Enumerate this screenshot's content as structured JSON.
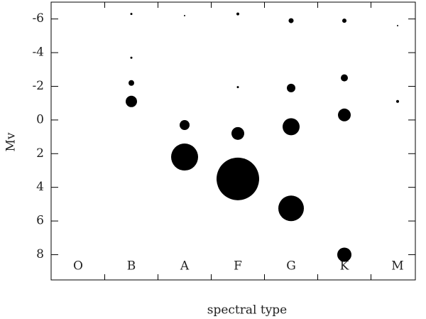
{
  "chart_data": {
    "type": "scatter",
    "x_label": "spectral type",
    "y_label": "Mv",
    "categories": [
      "O",
      "B",
      "A",
      "F",
      "G",
      "K",
      "M"
    ],
    "ylim": [
      9.5,
      -7
    ],
    "yticks": [
      -6,
      -4,
      -2,
      0,
      2,
      4,
      6,
      8
    ],
    "series": [
      {
        "color": "#000000",
        "x": [
          "B",
          "B",
          "B",
          "B",
          "A",
          "A",
          "A",
          "F",
          "F",
          "F",
          "F",
          "G",
          "G",
          "G",
          "G",
          "K",
          "K",
          "K",
          "K",
          "M",
          "M"
        ],
        "values": [
          -6.3,
          -3.7,
          -2.2,
          -1.1,
          -6.2,
          0.3,
          2.2,
          -6.3,
          -1.95,
          0.8,
          3.5,
          -5.9,
          -1.9,
          0.4,
          5.25,
          -5.9,
          -2.5,
          -0.3,
          8.0,
          -5.6,
          -1.1
        ],
        "sizes": [
          1.5,
          1.5,
          4,
          8,
          1,
          7,
          19,
          2,
          1.5,
          9,
          30,
          3.5,
          6,
          12,
          18,
          3,
          5,
          9,
          10,
          1,
          2
        ]
      }
    ]
  }
}
